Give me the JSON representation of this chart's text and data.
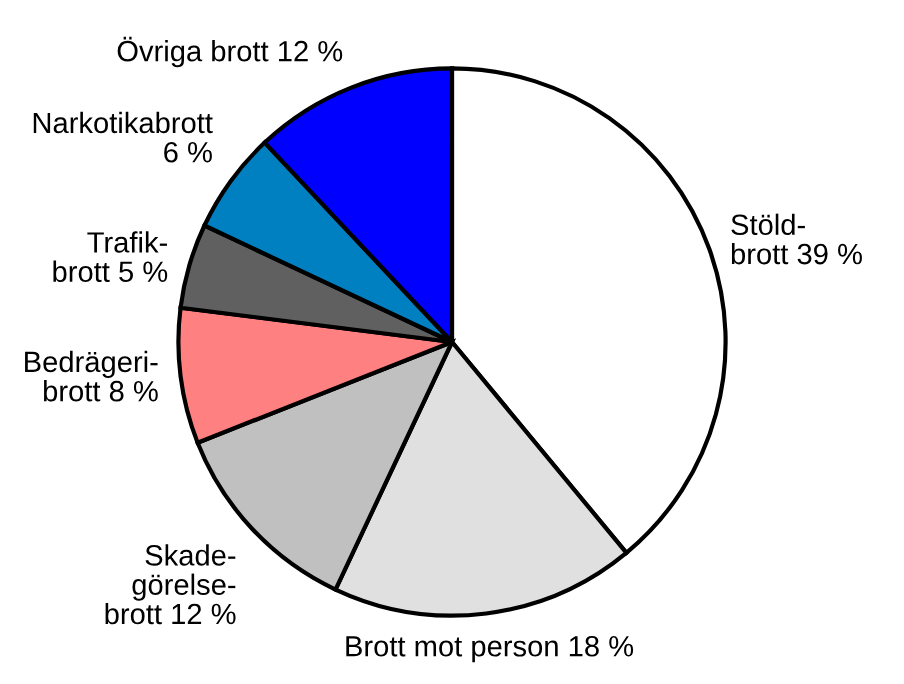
{
  "chart_data": {
    "type": "pie",
    "categories": [
      "Stöld-\nbrott 39 %",
      "Brott mot person 18 %",
      "Skade-\ngörelse-\nbrott 12 %",
      "Bedrägeri-\nbrott 8 %",
      "Trafik-\nbrott 5 %",
      "Narkotikabrott\n6 %",
      "Övriga brott 12 %"
    ],
    "values": [
      39,
      18,
      12,
      8,
      5,
      6,
      12
    ],
    "colors": [
      "#ffffff",
      "#e0e0e0",
      "#c0c0c0",
      "#ff8080",
      "#606060",
      "#0080c0",
      "#0000ff"
    ]
  }
}
